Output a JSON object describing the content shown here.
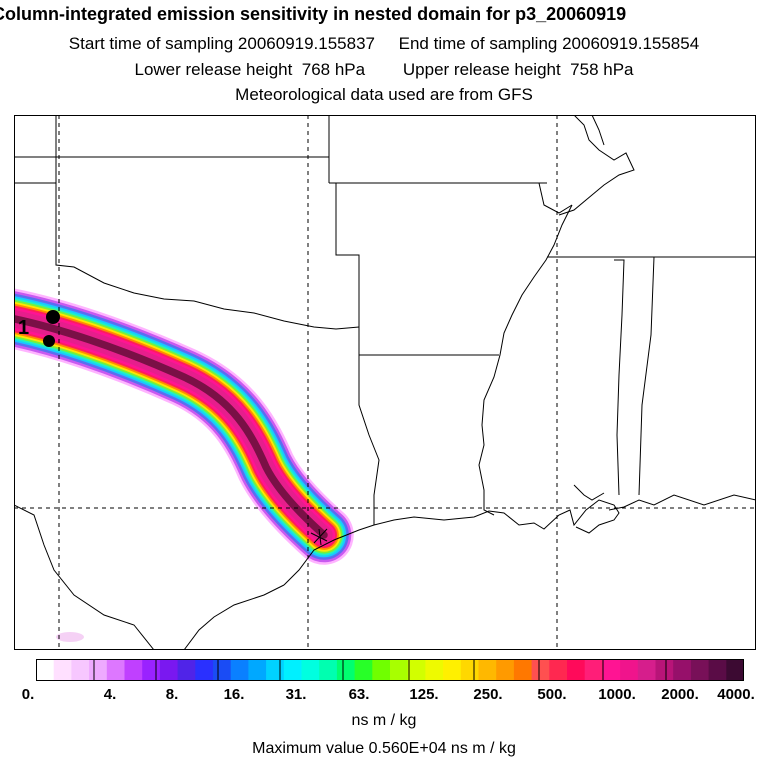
{
  "header": {
    "title": "Column-integrated emission sensitivity in nested domain for p3_20060919",
    "line1": "Start time of sampling 20060919.155837     End time of sampling 20060919.155854",
    "line2": "Lower release height  768 hPa        Upper release height  758 hPa",
    "line3": "Meteorological data used are from GFS"
  },
  "map": {
    "release_label": "1",
    "plume_colors": [
      "#ffb4ff",
      "#c85af0",
      "#5a6ef0",
      "#19c8ff",
      "#1ef0c8",
      "#78f03c",
      "#ffe600",
      "#ff8c00",
      "#ff1e5a",
      "#ff1493",
      "#e61e8c",
      "#7a1046"
    ]
  },
  "colorbar": {
    "colors": [
      "#ffffff",
      "#ffe0ff",
      "#f7c7ff",
      "#eeaaff",
      "#dd77ff",
      "#c040ff",
      "#9a22ff",
      "#7a18f0",
      "#5024e8",
      "#2a30ff",
      "#1a4cf5",
      "#0a80ff",
      "#00a8ff",
      "#00d2ff",
      "#00f0ff",
      "#00ffe0",
      "#00ffb0",
      "#00ff70",
      "#28ff28",
      "#70ff00",
      "#a8ff00",
      "#d2ff00",
      "#eefa00",
      "#fff000",
      "#ffd800",
      "#ffb800",
      "#ff9a00",
      "#ff7800",
      "#ff5050",
      "#ff2850",
      "#ff0a5a",
      "#ff1e78",
      "#ff1493",
      "#f0148c",
      "#d61e8c",
      "#b81478",
      "#96106a",
      "#781058",
      "#5a0c46",
      "#3c0a32"
    ],
    "ticks": [
      "0.",
      "4.",
      "8.",
      "16.",
      "31.",
      "63.",
      "125.",
      "250.",
      "500.",
      "1000.",
      "2000.",
      "4000."
    ],
    "units": "ns m / kg"
  },
  "footer": {
    "max_value": "Maximum value  0.560E+04 ns m / kg"
  }
}
